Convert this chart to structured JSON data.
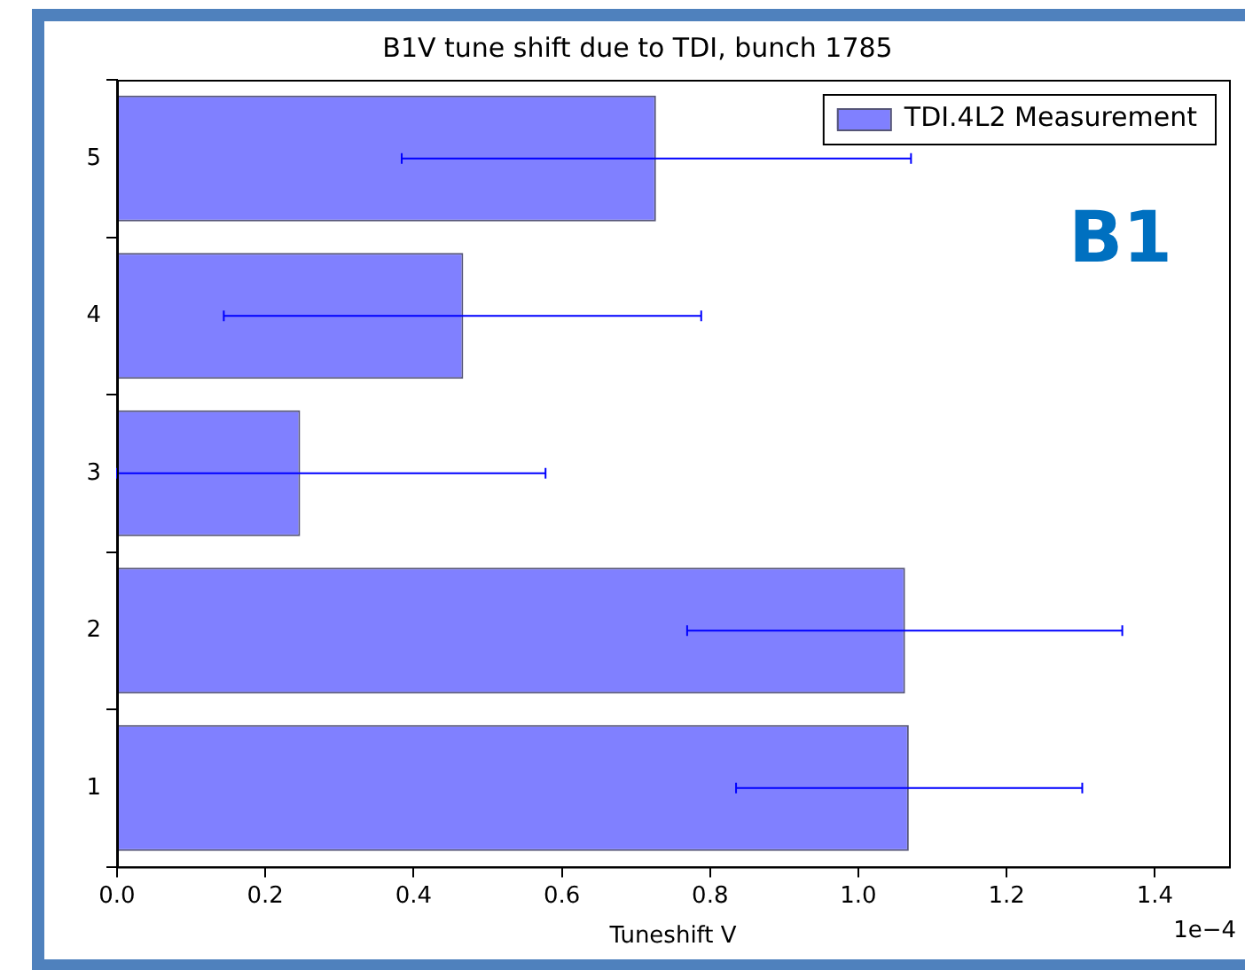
{
  "chart_data": {
    "type": "bar",
    "orientation": "horizontal",
    "title": "B1V tune shift due to TDI, bunch 1785",
    "xlabel": "Tuneshift V",
    "categories": [
      "5",
      "4",
      "3",
      "2",
      "1"
    ],
    "series": [
      {
        "name": "TDI.4L2 Measurement",
        "color": "#8080ff",
        "values": [
          0.727,
          0.467,
          0.247,
          1.063,
          1.068
        ],
        "errors": [
          [
            0.384,
            1.071
          ],
          [
            0.144,
            0.788
          ],
          [
            0,
            0.578
          ],
          [
            0.769,
            1.356
          ],
          [
            0.835,
            1.302
          ]
        ]
      }
    ],
    "xlim": [
      0,
      1.5
    ],
    "xticks": [
      {
        "value": 0,
        "label": "0.0"
      },
      {
        "value": 0.2,
        "label": "0.2"
      },
      {
        "value": 0.4,
        "label": "0.4"
      },
      {
        "value": 0.6,
        "label": "0.6"
      },
      {
        "value": 0.8,
        "label": "0.8"
      },
      {
        "value": 1,
        "label": "1.0"
      },
      {
        "value": 1.2,
        "label": "1.2"
      },
      {
        "value": 1.4,
        "label": "1.4"
      }
    ],
    "annotations": [
      "B1",
      "1e−4"
    ],
    "legend": "top right",
    "grid": false
  }
}
